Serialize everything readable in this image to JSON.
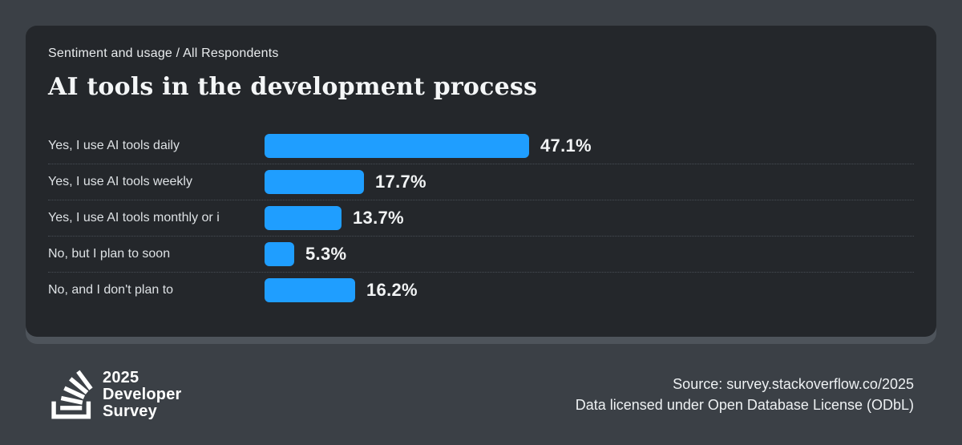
{
  "header": {
    "eyebrow": "Sentiment and usage / All Respondents",
    "title": "AI tools in the development process"
  },
  "chart_data": {
    "type": "bar",
    "orientation": "horizontal",
    "title": "AI tools in the development process",
    "subtitle": "Sentiment and usage / All Respondents",
    "categories": [
      "Yes, I use AI tools daily",
      "Yes, I use AI tools weekly",
      "Yes, I use AI tools monthly or i",
      "No, but I plan to soon",
      "No, and I don't plan to"
    ],
    "values": [
      47.1,
      17.7,
      13.7,
      5.3,
      16.2
    ],
    "value_labels": [
      "47.1%",
      "17.7%",
      "13.7%",
      "5.3%",
      "16.2%"
    ],
    "unit": "%",
    "xlim": [
      0,
      50
    ],
    "grid": "dotted row separators",
    "legend": "none"
  },
  "footer": {
    "logo": {
      "icon": "stackoverflow-icon",
      "line1": "2025",
      "line2": "Developer",
      "line3": "Survey"
    },
    "source_line1": "Source: survey.stackoverflow.co/2025",
    "source_line2": "Data licensed under Open Database License (ODbL)"
  },
  "colors": {
    "bar": "#1f9eff",
    "card_background": "#24272b",
    "outer_background": "#3b4046",
    "card_edge": "#4e545b",
    "label_text": "#dde1e4",
    "value_text": "#f1f3f4"
  }
}
